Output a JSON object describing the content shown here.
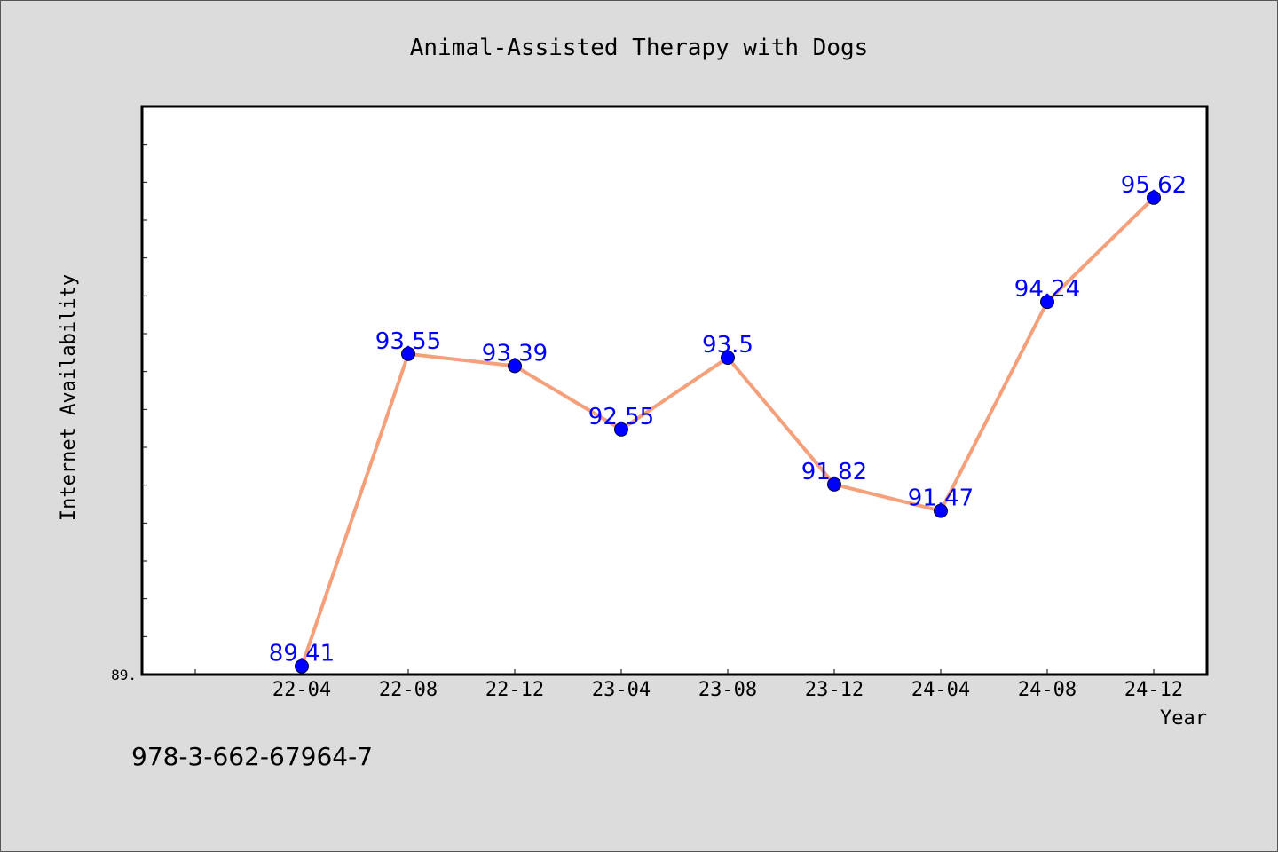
{
  "chart_data": {
    "type": "line",
    "title": "Animal-Assisted Therapy with Dogs",
    "xlabel": "Year",
    "ylabel": "Internet Availability",
    "categories": [
      "22-04",
      "22-08",
      "22-12",
      "23-04",
      "23-08",
      "23-12",
      "24-04",
      "24-08",
      "24-12"
    ],
    "series": [
      {
        "values": [
          89.41,
          93.55,
          93.39,
          92.55,
          93.5,
          91.82,
          91.47,
          94.24,
          95.62
        ],
        "data_labels": [
          "89.41",
          "93.55",
          "93.39",
          "92.55",
          "93.5",
          "91.82",
          "91.47",
          "94.24",
          "95.62"
        ]
      }
    ],
    "ylim": [
      89.3,
      96.83
    ],
    "y_tick_label": "89.",
    "grid": false,
    "legend": false,
    "colors": {
      "line": "#f5a07a",
      "marker": "#0000ff",
      "data_label": "#0000ff",
      "plot_background": "#ffffff",
      "figure_background": "#dcdcdc"
    }
  },
  "footer": {
    "isbn": "978-3-662-67964-7"
  }
}
